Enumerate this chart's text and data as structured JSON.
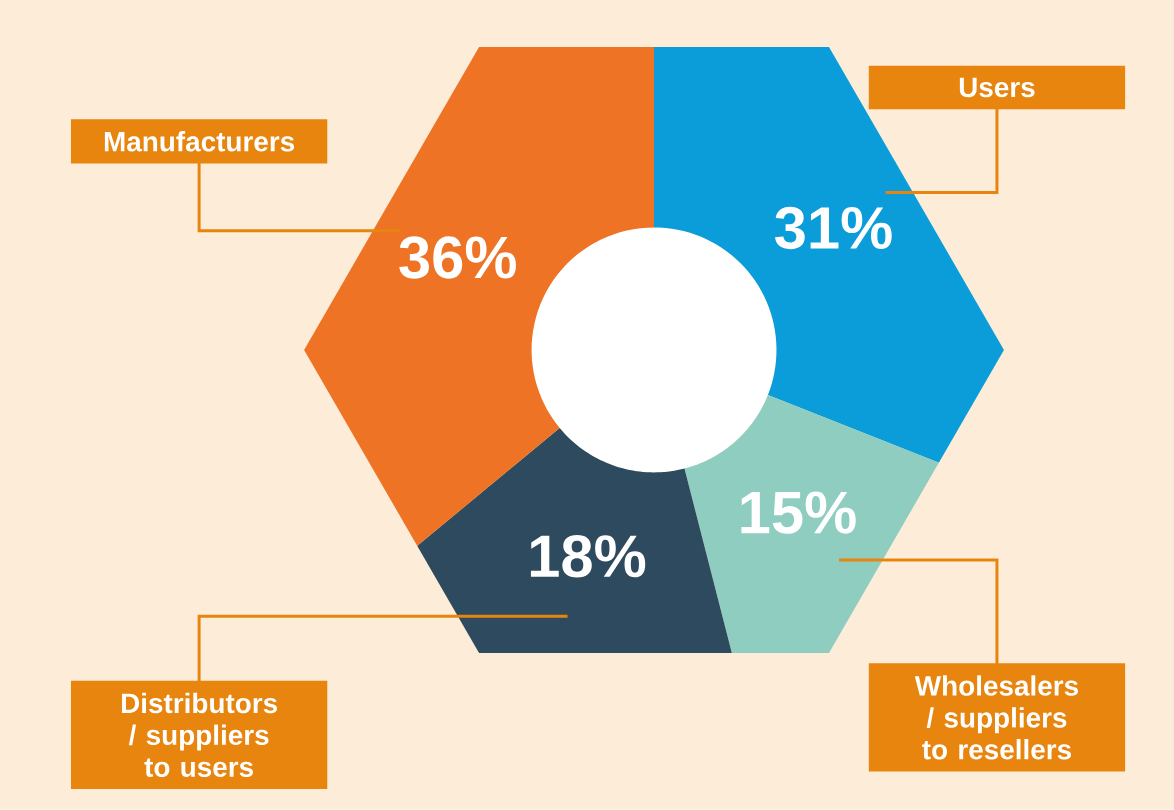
{
  "chart_data": {
    "type": "donut",
    "categories": [
      "Users",
      "Wholesalers / suppliers to resellers",
      "Distributors / suppliers to users",
      "Manufacturers"
    ],
    "values": [
      31,
      15,
      18,
      36
    ],
    "value_labels": [
      "31%",
      "15%",
      "18%",
      "36%"
    ],
    "colors": [
      "#0a9dd9",
      "#8ecdc0",
      "#2d4a5e",
      "#ee7324"
    ]
  }
}
